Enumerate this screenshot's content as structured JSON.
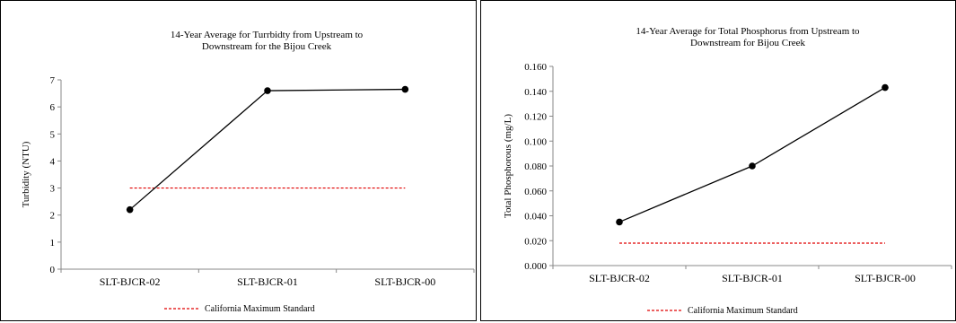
{
  "chart_data": [
    {
      "type": "line",
      "title": [
        "14-Year Average for Turrbidty from Upstream to",
        "Downstream for the Bijou Creek"
      ],
      "ylabel": "Turbidity (NTU)",
      "xlabel": "",
      "categories": [
        "SLT-BJCR-02",
        "SLT-BJCR-01",
        "SLT-BJCR-00"
      ],
      "series": [
        {
          "values": [
            2.2,
            6.6,
            6.65
          ],
          "color": "#000000"
        }
      ],
      "standard": {
        "name": "California Maximum Standard",
        "value": 3,
        "color": "#e00000"
      },
      "ylim": [
        0,
        7
      ],
      "yticks": [
        0,
        1,
        2,
        3,
        4,
        5,
        6,
        7
      ],
      "ytick_labels": [
        "0",
        "1",
        "2",
        "3",
        "4",
        "5",
        "6",
        "7"
      ],
      "legend_position": "bottom"
    },
    {
      "type": "line",
      "title": [
        "14-Year Average for Total Phosphorus  from Upstream to",
        "Downstream for Bijou Creek"
      ],
      "ylabel": "Total Phosphorous (mg/L)",
      "xlabel": "",
      "categories": [
        "SLT-BJCR-02",
        "SLT-BJCR-01",
        "SLT-BJCR-00"
      ],
      "series": [
        {
          "values": [
            0.035,
            0.08,
            0.143
          ],
          "color": "#000000"
        }
      ],
      "standard": {
        "name": "California Maximum Standard",
        "value": 0.018,
        "color": "#e00000"
      },
      "ylim": [
        0,
        0.16
      ],
      "yticks": [
        0,
        0.02,
        0.04,
        0.06,
        0.08,
        0.1,
        0.12,
        0.14,
        0.16
      ],
      "ytick_labels": [
        "0.000",
        "0.020",
        "0.040",
        "0.060",
        "0.080",
        "0.100",
        "0.120",
        "0.140",
        "0.160"
      ],
      "legend_position": "bottom"
    }
  ]
}
